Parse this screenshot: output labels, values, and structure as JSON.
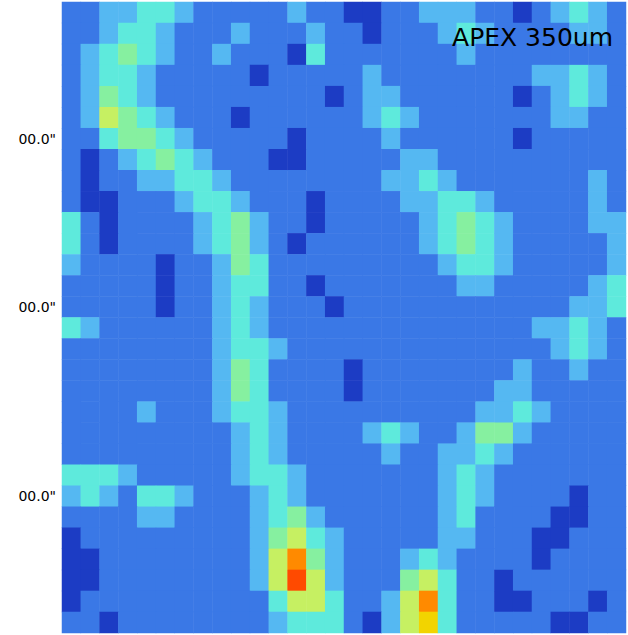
{
  "chart_data": {
    "type": "heatmap",
    "title": "APEX 350um",
    "categories": [
      null,
      null,
      null,
      null,
      null,
      null,
      null,
      null,
      null,
      null,
      null,
      null,
      null,
      null,
      null,
      null,
      null,
      null,
      null,
      null,
      null,
      null,
      null,
      null,
      null,
      null,
      null,
      null,
      null,
      null
    ],
    "y_categories": [
      null,
      null,
      null,
      null,
      null,
      null,
      "00.0\"",
      null,
      null,
      null,
      null,
      null,
      null,
      null,
      "00.0\"",
      null,
      null,
      null,
      null,
      null,
      null,
      null,
      null,
      "00.0\"",
      null,
      null,
      null,
      null,
      null,
      null
    ],
    "zlim": [
      0,
      8
    ],
    "grid": false,
    "tick_labels": "y",
    "cells": [
      [
        1,
        1,
        2,
        2,
        3,
        3,
        2,
        1,
        1,
        1,
        1,
        1,
        2,
        1,
        1,
        0,
        0,
        1,
        1,
        2,
        2,
        2,
        1,
        1,
        0,
        1,
        2,
        3,
        2,
        1
      ],
      [
        1,
        1,
        2,
        3,
        3,
        2,
        1,
        1,
        1,
        2,
        1,
        1,
        1,
        2,
        1,
        1,
        0,
        1,
        1,
        1,
        2,
        3,
        2,
        1,
        1,
        1,
        1,
        2,
        2,
        1
      ],
      [
        1,
        2,
        3,
        4,
        3,
        2,
        1,
        1,
        2,
        1,
        1,
        1,
        0,
        3,
        1,
        1,
        1,
        1,
        1,
        1,
        1,
        2,
        1,
        1,
        1,
        1,
        1,
        1,
        1,
        1
      ],
      [
        1,
        2,
        3,
        3,
        2,
        1,
        1,
        1,
        1,
        1,
        0,
        1,
        1,
        1,
        1,
        1,
        2,
        1,
        1,
        1,
        1,
        1,
        1,
        1,
        1,
        2,
        2,
        3,
        2,
        1
      ],
      [
        1,
        2,
        4,
        3,
        2,
        1,
        1,
        1,
        1,
        1,
        1,
        1,
        1,
        1,
        0,
        1,
        2,
        2,
        1,
        1,
        1,
        1,
        1,
        1,
        0,
        1,
        2,
        3,
        2,
        1
      ],
      [
        1,
        2,
        5,
        4,
        3,
        2,
        1,
        1,
        1,
        0,
        1,
        1,
        1,
        1,
        1,
        1,
        2,
        3,
        2,
        1,
        1,
        1,
        1,
        1,
        1,
        1,
        2,
        2,
        1,
        1
      ],
      [
        1,
        1,
        3,
        4,
        4,
        3,
        2,
        1,
        1,
        1,
        1,
        1,
        0,
        1,
        1,
        1,
        1,
        2,
        1,
        1,
        1,
        1,
        1,
        1,
        0,
        1,
        1,
        1,
        1,
        1
      ],
      [
        1,
        0,
        1,
        2,
        3,
        4,
        3,
        2,
        1,
        1,
        1,
        0,
        0,
        1,
        1,
        1,
        1,
        1,
        2,
        2,
        1,
        1,
        1,
        1,
        1,
        1,
        1,
        1,
        1,
        1
      ],
      [
        1,
        0,
        1,
        1,
        2,
        2,
        3,
        3,
        2,
        1,
        1,
        1,
        1,
        1,
        1,
        1,
        1,
        2,
        2,
        3,
        2,
        1,
        1,
        1,
        1,
        1,
        1,
        1,
        2,
        1
      ],
      [
        1,
        0,
        0,
        1,
        1,
        1,
        2,
        3,
        3,
        2,
        1,
        1,
        1,
        0,
        1,
        1,
        1,
        1,
        2,
        2,
        3,
        3,
        2,
        1,
        1,
        1,
        1,
        1,
        2,
        1
      ],
      [
        3,
        1,
        0,
        1,
        1,
        1,
        1,
        2,
        3,
        4,
        2,
        1,
        1,
        0,
        1,
        1,
        1,
        1,
        1,
        2,
        3,
        4,
        3,
        2,
        1,
        1,
        1,
        1,
        2,
        2
      ],
      [
        3,
        1,
        0,
        1,
        1,
        1,
        1,
        2,
        3,
        4,
        2,
        1,
        0,
        1,
        1,
        1,
        1,
        1,
        1,
        2,
        3,
        4,
        3,
        2,
        1,
        1,
        1,
        1,
        1,
        2
      ],
      [
        2,
        1,
        1,
        1,
        1,
        0,
        1,
        1,
        2,
        4,
        3,
        1,
        1,
        1,
        1,
        1,
        1,
        1,
        1,
        1,
        2,
        3,
        3,
        2,
        1,
        1,
        1,
        1,
        1,
        2
      ],
      [
        1,
        1,
        1,
        1,
        1,
        0,
        1,
        1,
        2,
        3,
        3,
        1,
        1,
        0,
        1,
        1,
        1,
        1,
        1,
        1,
        1,
        2,
        2,
        1,
        1,
        1,
        1,
        1,
        2,
        3
      ],
      [
        1,
        1,
        1,
        1,
        1,
        0,
        1,
        1,
        2,
        3,
        2,
        1,
        1,
        1,
        0,
        1,
        1,
        1,
        1,
        1,
        1,
        1,
        1,
        1,
        1,
        1,
        1,
        2,
        2,
        3
      ],
      [
        3,
        2,
        1,
        1,
        1,
        1,
        1,
        1,
        2,
        3,
        2,
        1,
        1,
        1,
        1,
        1,
        1,
        1,
        1,
        1,
        1,
        1,
        1,
        1,
        1,
        2,
        2,
        3,
        2,
        1
      ],
      [
        1,
        1,
        1,
        1,
        1,
        1,
        1,
        1,
        2,
        3,
        3,
        2,
        1,
        1,
        1,
        1,
        1,
        1,
        1,
        1,
        1,
        1,
        1,
        1,
        1,
        1,
        2,
        3,
        2,
        1
      ],
      [
        1,
        1,
        1,
        1,
        1,
        1,
        1,
        1,
        2,
        4,
        3,
        1,
        1,
        1,
        1,
        0,
        1,
        1,
        1,
        1,
        1,
        1,
        1,
        1,
        2,
        1,
        1,
        2,
        1,
        1
      ],
      [
        1,
        1,
        1,
        1,
        1,
        1,
        1,
        1,
        2,
        4,
        3,
        1,
        1,
        1,
        1,
        0,
        1,
        1,
        1,
        1,
        1,
        1,
        1,
        2,
        2,
        1,
        1,
        1,
        1,
        1
      ],
      [
        1,
        1,
        1,
        1,
        2,
        1,
        1,
        1,
        2,
        3,
        3,
        2,
        1,
        1,
        1,
        1,
        1,
        1,
        1,
        1,
        1,
        1,
        2,
        2,
        3,
        2,
        1,
        1,
        1,
        1
      ],
      [
        1,
        1,
        1,
        1,
        1,
        1,
        1,
        1,
        1,
        2,
        3,
        2,
        1,
        1,
        1,
        1,
        2,
        3,
        2,
        1,
        1,
        2,
        4,
        4,
        2,
        1,
        1,
        1,
        1,
        1
      ],
      [
        1,
        1,
        1,
        1,
        1,
        1,
        1,
        1,
        1,
        2,
        3,
        2,
        1,
        1,
        1,
        1,
        1,
        2,
        1,
        1,
        2,
        2,
        3,
        2,
        1,
        1,
        1,
        1,
        1,
        1
      ],
      [
        3,
        3,
        3,
        2,
        1,
        1,
        1,
        1,
        1,
        2,
        3,
        3,
        2,
        1,
        1,
        1,
        1,
        1,
        1,
        1,
        2,
        3,
        2,
        1,
        1,
        1,
        1,
        1,
        1,
        1
      ],
      [
        2,
        3,
        2,
        1,
        3,
        3,
        2,
        1,
        1,
        1,
        2,
        3,
        2,
        1,
        1,
        1,
        1,
        1,
        1,
        1,
        2,
        3,
        2,
        1,
        1,
        1,
        1,
        0,
        1,
        1
      ],
      [
        1,
        1,
        1,
        1,
        2,
        2,
        1,
        1,
        1,
        1,
        2,
        3,
        4,
        2,
        1,
        1,
        1,
        1,
        1,
        1,
        2,
        3,
        1,
        1,
        1,
        1,
        0,
        0,
        1,
        1
      ],
      [
        0,
        1,
        1,
        1,
        1,
        1,
        1,
        1,
        1,
        1,
        2,
        4,
        5,
        3,
        2,
        1,
        1,
        1,
        1,
        1,
        2,
        2,
        1,
        1,
        1,
        0,
        0,
        1,
        1,
        1
      ],
      [
        0,
        0,
        1,
        1,
        1,
        1,
        1,
        1,
        1,
        1,
        2,
        5,
        7,
        4,
        2,
        1,
        1,
        1,
        2,
        3,
        2,
        1,
        1,
        1,
        1,
        0,
        1,
        1,
        1,
        1
      ],
      [
        0,
        0,
        1,
        1,
        1,
        1,
        1,
        1,
        1,
        1,
        2,
        5,
        8,
        5,
        2,
        1,
        1,
        1,
        4,
        5,
        3,
        1,
        1,
        0,
        1,
        1,
        1,
        1,
        1,
        1
      ],
      [
        0,
        1,
        1,
        1,
        1,
        1,
        1,
        1,
        1,
        1,
        1,
        3,
        5,
        5,
        3,
        1,
        1,
        2,
        5,
        7,
        3,
        1,
        1,
        0,
        0,
        1,
        1,
        1,
        0,
        1
      ],
      [
        1,
        1,
        0,
        1,
        1,
        1,
        1,
        1,
        1,
        1,
        1,
        2,
        3,
        3,
        3,
        1,
        0,
        2,
        5,
        6,
        3,
        1,
        1,
        1,
        1,
        1,
        0,
        0,
        1,
        1
      ]
    ]
  }
}
